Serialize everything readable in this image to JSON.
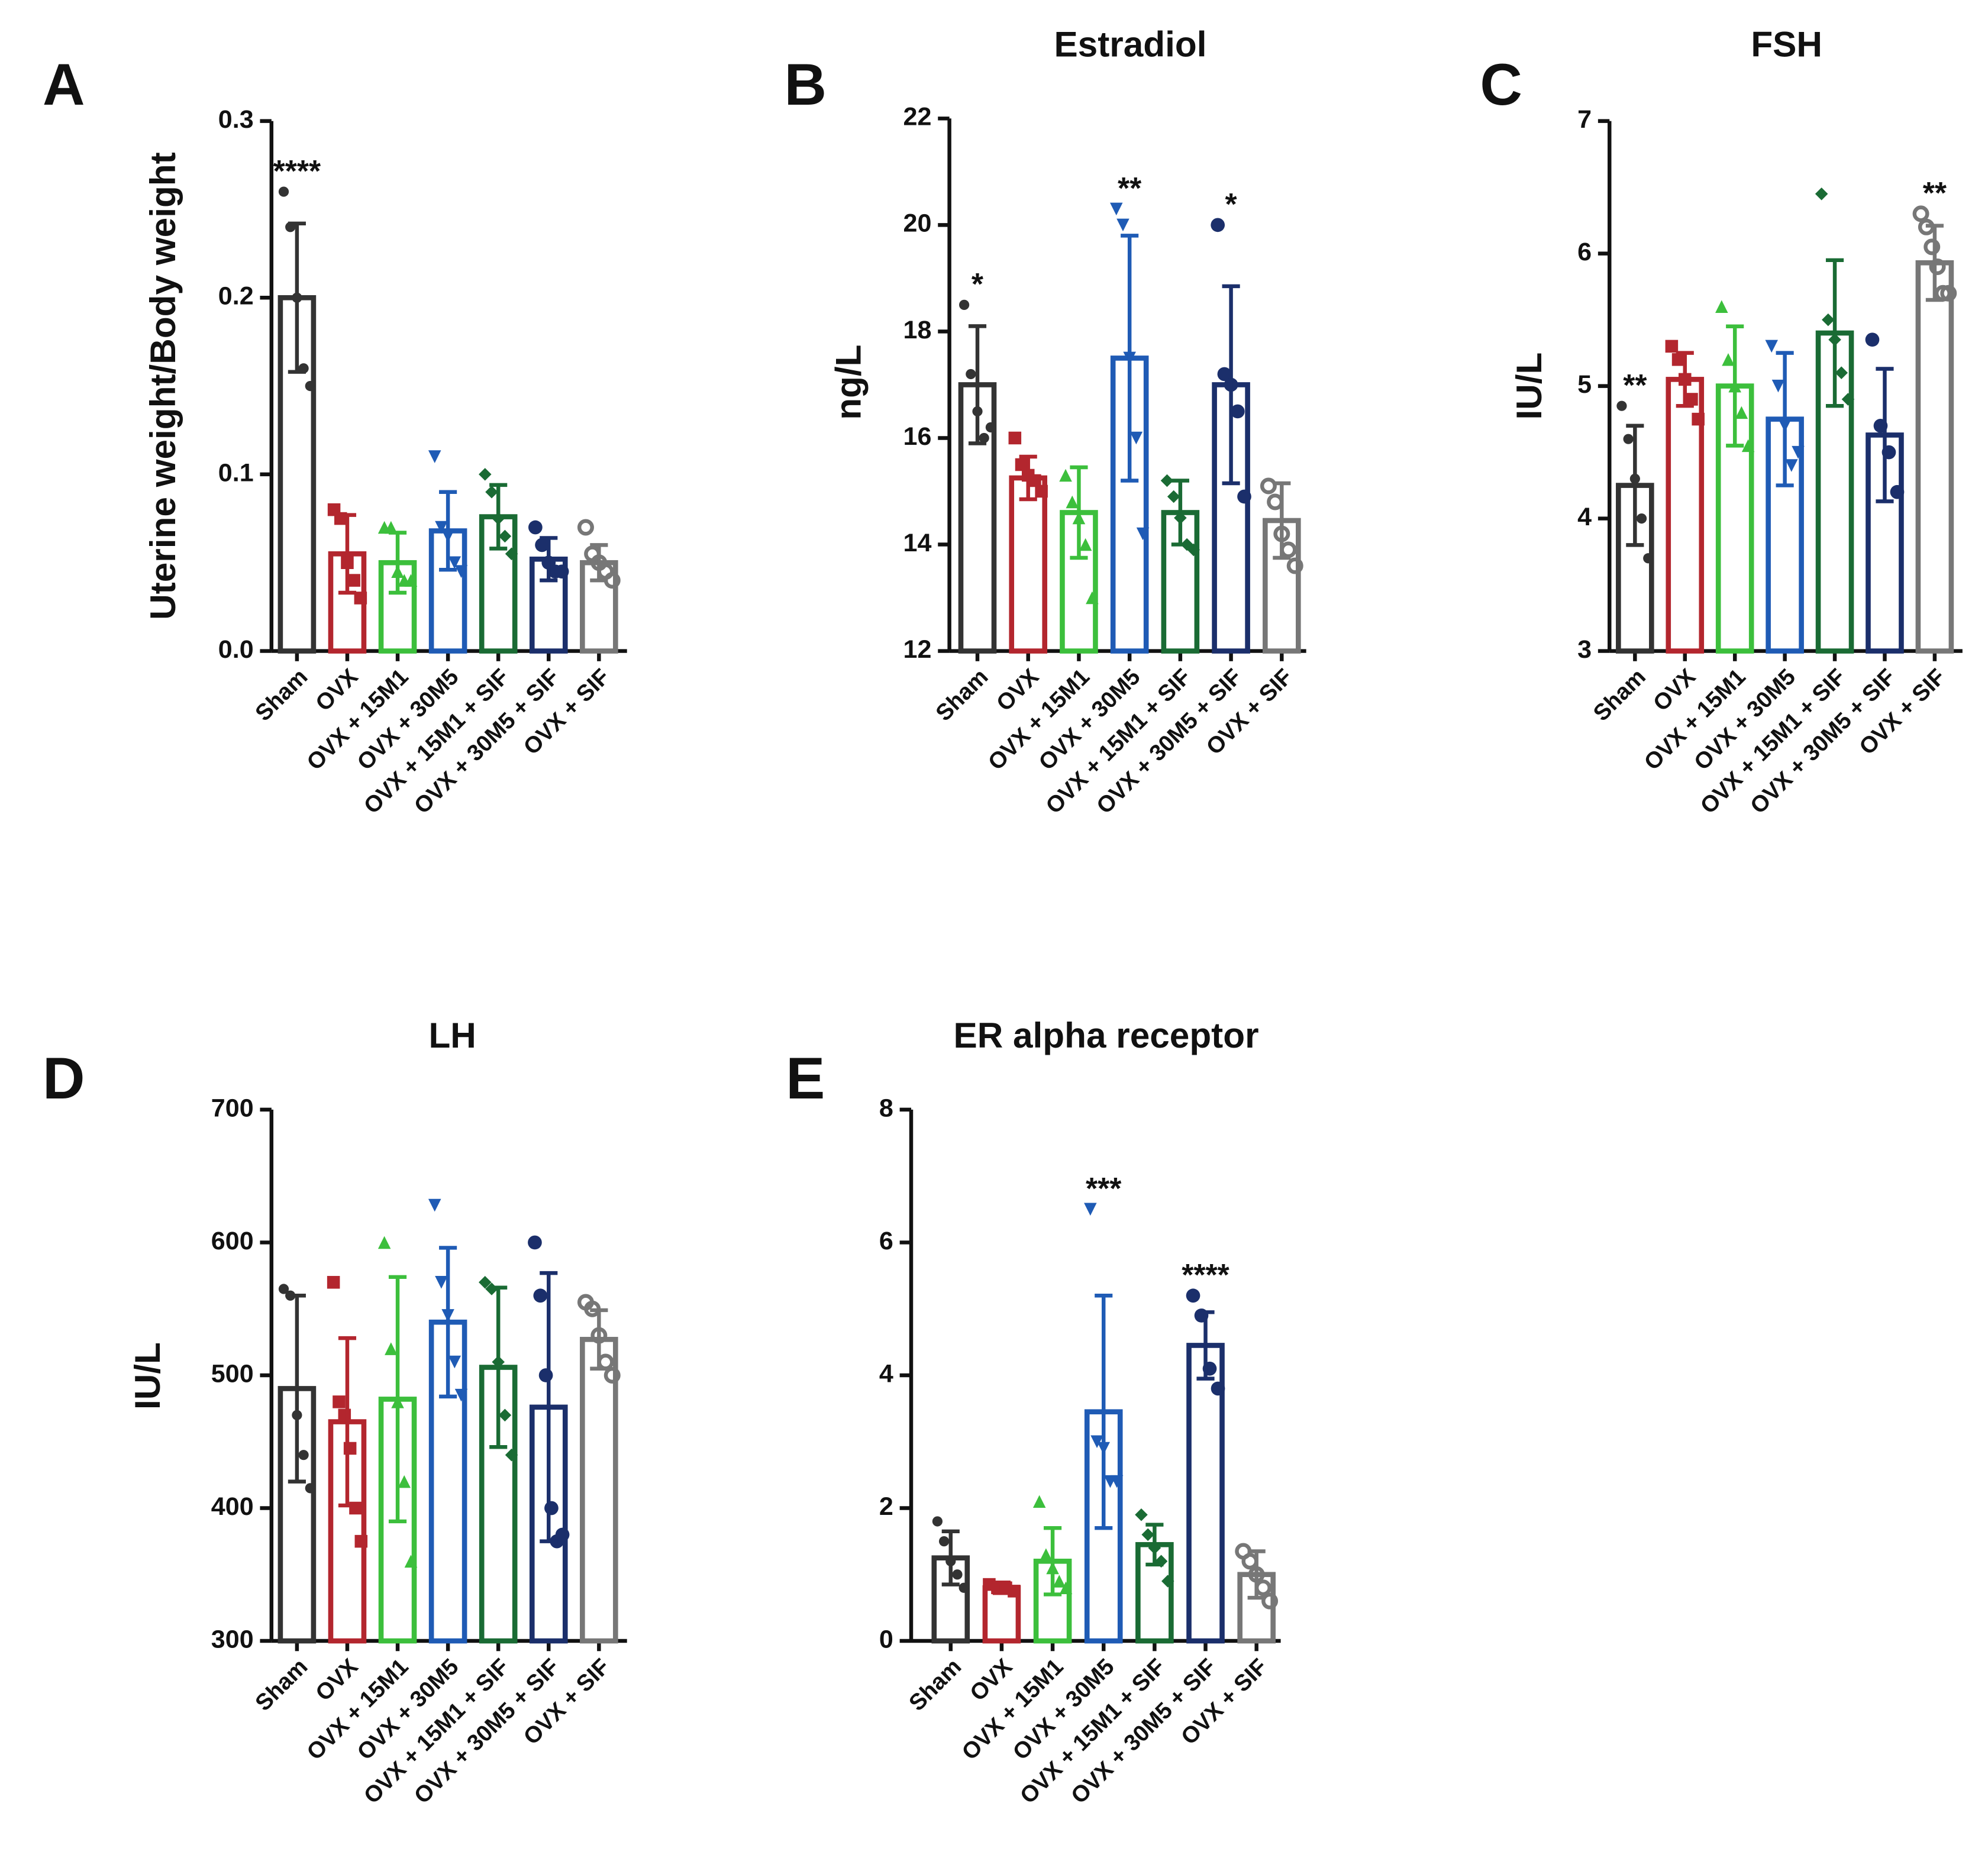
{
  "chart_data": [
    {
      "type": "bar",
      "panel": "A",
      "y_label": "Uterine weight/Body weight",
      "categories": [
        "Sham",
        "OVX",
        "OVX + 15M1",
        "OVX + 30M5",
        "OVX + 15M1 + SIF",
        "OVX + 30M5 + SIF",
        "OVX + SIF"
      ],
      "colors": [
        "#333333",
        "#b3262e",
        "#3cbf3c",
        "#1f5bb5",
        "#1a6b34",
        "#1b2f6b",
        "#777777"
      ],
      "markers": [
        "circle",
        "square",
        "triangle",
        "triangle-down",
        "diamond",
        "circle",
        "circle-open"
      ],
      "values": [
        0.2,
        0.055,
        0.05,
        0.068,
        0.076,
        0.052,
        0.05
      ],
      "errors": [
        0.042,
        0.022,
        0.017,
        0.022,
        0.018,
        0.012,
        0.01
      ],
      "points": [
        [
          0.26,
          0.24,
          0.2,
          0.16,
          0.15
        ],
        [
          0.08,
          0.075,
          0.05,
          0.04,
          0.03
        ],
        [
          0.07,
          0.07,
          0.045,
          0.04,
          0.04
        ],
        [
          0.11,
          0.07,
          0.065,
          0.05,
          0.045
        ],
        [
          0.1,
          0.09,
          0.075,
          0.065,
          0.055
        ],
        [
          0.07,
          0.06,
          0.05,
          0.045,
          0.045
        ],
        [
          0.07,
          0.055,
          0.05,
          0.045,
          0.04
        ]
      ],
      "significance": [
        "****",
        null,
        null,
        null,
        null,
        null,
        null
      ],
      "ylim": [
        0,
        0.3
      ],
      "yticks": [
        {
          "value": 0,
          "label": "0.0"
        },
        0.1,
        0.2,
        0.3
      ]
    },
    {
      "type": "bar",
      "panel": "B",
      "title": "Estradiol",
      "y_label": "ng/L",
      "categories": [
        "Sham",
        "OVX",
        "OVX + 15M1",
        "OVX + 30M5",
        "OVX + 15M1 + SIF",
        "OVX + 30M5 + SIF",
        "OVX + SIF"
      ],
      "colors": [
        "#333333",
        "#b3262e",
        "#3cbf3c",
        "#1f5bb5",
        "#1a6b34",
        "#1b2f6b",
        "#777777"
      ],
      "markers": [
        "circle",
        "square",
        "triangle",
        "triangle-down",
        "diamond",
        "circle",
        "circle-open"
      ],
      "values": [
        17.0,
        15.25,
        14.6,
        17.5,
        14.6,
        17.0,
        14.45
      ],
      "errors": [
        1.1,
        0.4,
        0.85,
        2.3,
        0.6,
        1.85,
        0.7
      ],
      "points": [
        [
          18.5,
          17.2,
          16.5,
          16.0,
          16.2
        ],
        [
          16.0,
          15.5,
          15.3,
          15.2,
          15.0
        ],
        [
          15.3,
          14.8,
          14.5,
          14.0,
          13.0
        ],
        [
          20.3,
          20.0,
          17.5,
          16.0,
          14.2
        ],
        [
          15.2,
          14.9,
          14.5,
          14.0,
          13.9
        ],
        [
          20.0,
          17.2,
          17.0,
          16.5,
          14.9
        ],
        [
          15.1,
          14.8,
          14.2,
          13.9,
          13.6
        ]
      ],
      "significance": [
        "*",
        null,
        null,
        "**",
        null,
        "*",
        null
      ],
      "ylim": [
        12,
        22
      ],
      "yticks": [
        12,
        14,
        16,
        18,
        20,
        22
      ]
    },
    {
      "type": "bar",
      "panel": "C",
      "title": "FSH",
      "y_label": "IU/L",
      "categories": [
        "Sham",
        "OVX",
        "OVX + 15M1",
        "OVX + 30M5",
        "OVX + 15M1 + SIF",
        "OVX + 30M5 + SIF",
        "OVX + SIF"
      ],
      "colors": [
        "#333333",
        "#b3262e",
        "#3cbf3c",
        "#1f5bb5",
        "#1a6b34",
        "#1b2f6b",
        "#777777"
      ],
      "markers": [
        "circle",
        "square",
        "triangle",
        "triangle-down",
        "diamond",
        "circle",
        "circle-open"
      ],
      "values": [
        4.25,
        5.05,
        5.0,
        4.75,
        5.4,
        4.63,
        5.93
      ],
      "errors": [
        0.45,
        0.2,
        0.45,
        0.5,
        0.55,
        0.5,
        0.28
      ],
      "points": [
        [
          4.85,
          4.6,
          4.3,
          4.0,
          3.7
        ],
        [
          5.3,
          5.2,
          5.05,
          4.9,
          4.75
        ],
        [
          5.6,
          5.2,
          5.0,
          4.8,
          4.55
        ],
        [
          5.3,
          5.0,
          4.7,
          4.4,
          4.5
        ],
        [
          6.45,
          5.5,
          5.35,
          5.1,
          4.9
        ],
        [
          5.35,
          4.7,
          4.5,
          4.2
        ],
        [
          6.3,
          6.2,
          6.05,
          5.9,
          5.7,
          5.7
        ]
      ],
      "significance": [
        "**",
        null,
        null,
        null,
        null,
        null,
        "**"
      ],
      "ylim": [
        3,
        7
      ],
      "yticks": [
        3,
        4,
        5,
        6,
        7
      ]
    },
    {
      "type": "bar",
      "panel": "D",
      "title": "LH",
      "y_label": "IU/L",
      "categories": [
        "Sham",
        "OVX",
        "OVX + 15M1",
        "OVX + 30M5",
        "OVX + 15M1 + SIF",
        "OVX + 30M5 + SIF",
        "OVX + SIF"
      ],
      "colors": [
        "#333333",
        "#b3262e",
        "#3cbf3c",
        "#1f5bb5",
        "#1a6b34",
        "#1b2f6b",
        "#777777"
      ],
      "markers": [
        "circle",
        "square",
        "triangle",
        "triangle-down",
        "diamond",
        "circle",
        "circle-open"
      ],
      "values": [
        490,
        465,
        482,
        540,
        506,
        476,
        527
      ],
      "errors": [
        70,
        63,
        92,
        56,
        60,
        101,
        22
      ],
      "points": [
        [
          565,
          560,
          470,
          440,
          415
        ],
        [
          570,
          480,
          470,
          445,
          400,
          375
        ],
        [
          600,
          520,
          480,
          420,
          360
        ],
        [
          628,
          570,
          545,
          510,
          485
        ],
        [
          570,
          565,
          510,
          470,
          440
        ],
        [
          600,
          560,
          500,
          400,
          375,
          380
        ],
        [
          555,
          550,
          530,
          510,
          500
        ]
      ],
      "ylim": [
        300,
        700
      ],
      "yticks": [
        300,
        400,
        500,
        600,
        700
      ]
    },
    {
      "type": "bar",
      "panel": "E",
      "title": "ER alpha receptor",
      "categories": [
        "Sham",
        "OVX",
        "OVX + 15M1",
        "OVX + 30M5",
        "OVX + 15M1 + SIF",
        "OVX + 30M5 + SIF",
        "OVX + SIF"
      ],
      "colors": [
        "#333333",
        "#b3262e",
        "#3cbf3c",
        "#1f5bb5",
        "#1a6b34",
        "#1b2f6b",
        "#777777"
      ],
      "markers": [
        "circle",
        "square",
        "triangle",
        "triangle-down",
        "diamond",
        "circle",
        "circle-open"
      ],
      "values": [
        1.25,
        0.8,
        1.2,
        3.45,
        1.45,
        4.45,
        1.0
      ],
      "errors": [
        0.4,
        0.08,
        0.5,
        1.75,
        0.3,
        0.5,
        0.35
      ],
      "points": [
        [
          1.8,
          1.5,
          1.2,
          1.0,
          0.8
        ],
        [
          0.85,
          0.8,
          0.8,
          0.75
        ],
        [
          2.1,
          1.3,
          1.1,
          0.9,
          0.8
        ],
        [
          6.5,
          3.0,
          2.9,
          2.4,
          2.4
        ],
        [
          1.9,
          1.6,
          1.4,
          1.2,
          0.9
        ],
        [
          5.2,
          4.9,
          4.1,
          3.8
        ],
        [
          1.35,
          1.2,
          1.0,
          0.8,
          0.6
        ]
      ],
      "significance": [
        null,
        null,
        null,
        "***",
        null,
        "****",
        null
      ],
      "ylim": [
        0,
        8
      ],
      "yticks": [
        0,
        2,
        4,
        6,
        8
      ]
    }
  ]
}
